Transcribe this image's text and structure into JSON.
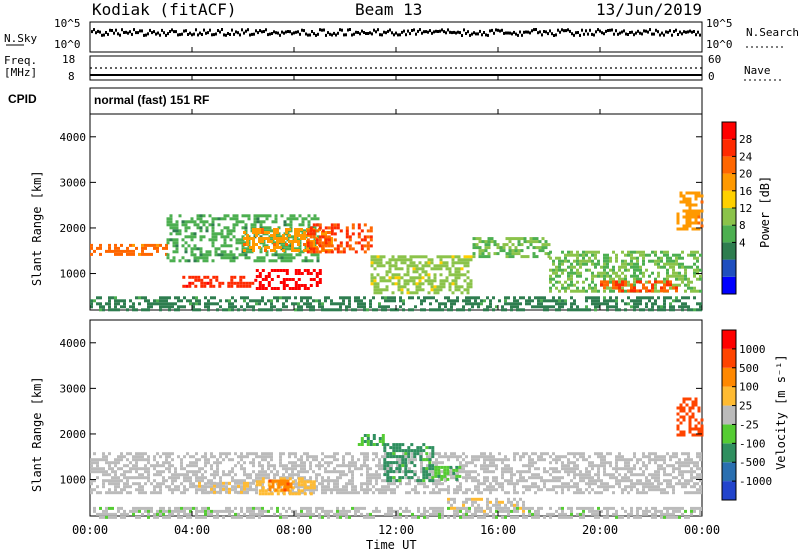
{
  "header": {
    "site": "Kodiak (fitACF)",
    "beam": "Beam 13",
    "date": "13/Jun/2019"
  },
  "noise_panel": {
    "left_label": "N.Sky",
    "left_ticks": [
      "10^5",
      "10^0"
    ],
    "right_label": "N.Search",
    "right_ticks": [
      "10^5",
      "10^0"
    ]
  },
  "freq_panel": {
    "left_label_1": "Freq.",
    "left_label_2": "[MHz]",
    "left_ticks": [
      "18",
      "8"
    ],
    "right_label": "Nave",
    "right_ticks": [
      "60",
      "0"
    ]
  },
  "cpid": {
    "label": "CPID",
    "text": "normal (fast) 151 RF"
  },
  "power_panel": {
    "ylabel": "Slant Range [km]",
    "yticks": [
      "4000",
      "3000",
      "2000",
      "1000"
    ],
    "colorbar_label": "Power [dB]",
    "colorbar_ticks": [
      "28",
      "24",
      "20",
      "16",
      "12",
      "8",
      "4"
    ],
    "colorbar_colors": [
      "#0000ff",
      "#1f4fbf",
      "#2e7d4f",
      "#4caf50",
      "#8bc34a",
      "#ffd000",
      "#ff9900",
      "#ff6600",
      "#ff2a00",
      "#ff0000"
    ]
  },
  "velocity_panel": {
    "ylabel": "Slant Range [km]",
    "yticks": [
      "4000",
      "3000",
      "2000",
      "1000"
    ],
    "colorbar_label": "Velocity [m s⁻¹]",
    "colorbar_ticks": [
      "1000",
      "500",
      "100",
      "25",
      "-25",
      "-100",
      "-500",
      "-1000"
    ],
    "colorbar_colors": [
      "#2244cc",
      "#2a6fb0",
      "#2f8f5f",
      "#55cc33",
      "#bbbbbb",
      "#ffbb33",
      "#ff8800",
      "#ff4400",
      "#ff0000"
    ]
  },
  "time_axis": {
    "ticks": [
      "00:00",
      "04:00",
      "08:00",
      "12:00",
      "16:00",
      "20:00",
      "00:00"
    ],
    "label": "Time UT"
  },
  "chart_data": {
    "type": "heatmap",
    "title": "Kodiak (fitACF) Beam 13 13/Jun/2019",
    "xlabel": "Time UT",
    "ylabel": "Slant Range [km]",
    "xlim": [
      0,
      24
    ],
    "ylim": [
      200,
      4500
    ],
    "grid": false,
    "legend": "right",
    "panels": [
      {
        "name": "Power [dB]",
        "clim": [
          0,
          30
        ],
        "regions": [
          {
            "t": [
              0.0,
              3.0
            ],
            "r": [
              1400,
              1650
            ],
            "value": 22
          },
          {
            "t": [
              3.0,
              9.0
            ],
            "r": [
              1300,
              2300
            ],
            "value": 10
          },
          {
            "t": [
              3.5,
              6.5
            ],
            "r": [
              700,
              950
            ],
            "value": 26
          },
          {
            "t": [
              6.5,
              9.0
            ],
            "r": [
              700,
              1100
            ],
            "value": 29
          },
          {
            "t": [
              6.0,
              9.5
            ],
            "r": [
              1500,
              2000
            ],
            "value": 20
          },
          {
            "t": [
              8.5,
              11.0
            ],
            "r": [
              1500,
              2100
            ],
            "value": 24
          },
          {
            "t": [
              11.0,
              15.0
            ],
            "r": [
              600,
              1400
            ],
            "value": 14
          },
          {
            "t": [
              15.0,
              18.0
            ],
            "r": [
              1400,
              1800
            ],
            "value": 12
          },
          {
            "t": [
              18.0,
              24.0
            ],
            "r": [
              600,
              1500
            ],
            "value": 12
          },
          {
            "t": [
              20.0,
              23.0
            ],
            "r": [
              650,
              850
            ],
            "value": 24
          },
          {
            "t": [
              23.0,
              24.0
            ],
            "r": [
              2000,
              2800
            ],
            "value": 20
          },
          {
            "t": [
              0.0,
              24.0
            ],
            "r": [
              200,
              500
            ],
            "value": 8
          }
        ]
      },
      {
        "name": "Velocity [m s-1]",
        "clim": [
          -1000,
          1000
        ],
        "regions": [
          {
            "t": [
              0.0,
              24.0
            ],
            "r": [
              700,
              1600
            ],
            "value": 0
          },
          {
            "t": [
              4.0,
              6.5
            ],
            "r": [
              700,
              950
            ],
            "value": 100
          },
          {
            "t": [
              6.5,
              8.8
            ],
            "r": [
              700,
              1050
            ],
            "value": 200
          },
          {
            "t": [
              7.0,
              8.0
            ],
            "r": [
              800,
              1000
            ],
            "value": 500
          },
          {
            "t": [
              10.5,
              11.5
            ],
            "r": [
              1800,
              2000
            ],
            "value": -300
          },
          {
            "t": [
              11.5,
              13.5
            ],
            "r": [
              1000,
              1800
            ],
            "value": -400
          },
          {
            "t": [
              13.5,
              14.5
            ],
            "r": [
              1000,
              1300
            ],
            "value": -300
          },
          {
            "t": [
              14.0,
              17.0
            ],
            "r": [
              300,
              600
            ],
            "value": 80
          },
          {
            "t": [
              23.0,
              24.0
            ],
            "r": [
              2000,
              2800
            ],
            "value": 700
          },
          {
            "t": [
              0.0,
              24.0
            ],
            "r": [
              200,
              400
            ],
            "value": -50
          }
        ]
      }
    ]
  }
}
